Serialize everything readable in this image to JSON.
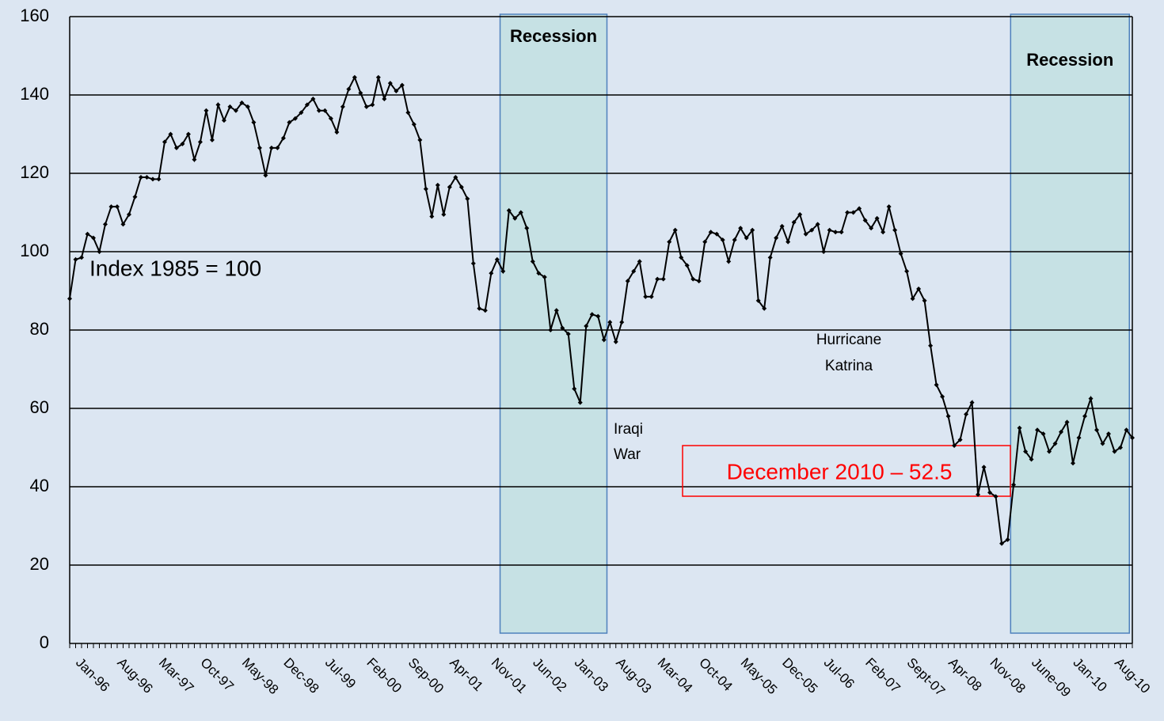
{
  "chart_data": {
    "type": "line",
    "categories": [
      "Jan-96",
      null,
      null,
      null,
      null,
      null,
      null,
      "Aug-96",
      null,
      null,
      null,
      null,
      null,
      null,
      "Mar-97",
      null,
      null,
      null,
      null,
      null,
      null,
      "Oct-97",
      null,
      null,
      null,
      null,
      null,
      null,
      "May-98",
      null,
      null,
      null,
      null,
      null,
      null,
      "Dec-98",
      null,
      null,
      null,
      null,
      null,
      null,
      "Jul-99",
      null,
      null,
      null,
      null,
      null,
      null,
      "Feb-00",
      null,
      null,
      null,
      null,
      null,
      null,
      "Sep-00",
      null,
      null,
      null,
      null,
      null,
      null,
      "Apr-01",
      null,
      null,
      null,
      null,
      null,
      null,
      "Nov-01",
      null,
      null,
      null,
      null,
      null,
      null,
      "Jun-02",
      null,
      null,
      null,
      null,
      null,
      null,
      "Jan-03",
      null,
      null,
      null,
      null,
      null,
      null,
      "Aug-03",
      null,
      null,
      null,
      null,
      null,
      null,
      "Mar-04",
      null,
      null,
      null,
      null,
      null,
      null,
      "Oct-04",
      null,
      null,
      null,
      null,
      null,
      null,
      "May-05",
      null,
      null,
      null,
      null,
      null,
      null,
      "Dec-05",
      null,
      null,
      null,
      null,
      null,
      null,
      "Jul-06",
      null,
      null,
      null,
      null,
      null,
      null,
      "Feb-07",
      null,
      null,
      null,
      null,
      null,
      null,
      "Sept-07",
      null,
      null,
      null,
      null,
      null,
      null,
      "Apr-08",
      null,
      null,
      null,
      null,
      null,
      null,
      "Nov-08",
      null,
      null,
      null,
      null,
      null,
      null,
      "June-09",
      null,
      null,
      null,
      null,
      null,
      null,
      "Jan-10",
      null,
      null,
      null,
      null,
      null,
      null,
      "Aug-10",
      null,
      null,
      null,
      null
    ],
    "series": [
      {
        "color": "#000000",
        "values": [
          88,
          98,
          98.5,
          104.5,
          103.5,
          100,
          107,
          111.5,
          111.5,
          107,
          109.5,
          114,
          119,
          119,
          118.5,
          118.5,
          128,
          130,
          126.5,
          127.5,
          130,
          123.5,
          128,
          136,
          128.5,
          137.5,
          133.5,
          137,
          136,
          138,
          137,
          133,
          126.5,
          119.5,
          126.5,
          126.5,
          129,
          133,
          134,
          135.5,
          137.5,
          139,
          136,
          136,
          134,
          130.5,
          137,
          141.5,
          144.5,
          140.5,
          137,
          137.5,
          144.5,
          139,
          143,
          141,
          142.5,
          135.5,
          132.5,
          128.5,
          116,
          109,
          117,
          109.5,
          116.5,
          119,
          116.5,
          113.5,
          97,
          85.5,
          85,
          94.5,
          98,
          95,
          110.5,
          108.5,
          110,
          106,
          97.5,
          94.5,
          93.5,
          80,
          85,
          80.5,
          79,
          65,
          61.5,
          81,
          84,
          83.5,
          77.5,
          82,
          77,
          82,
          92.5,
          95,
          97.5,
          88.5,
          88.5,
          93,
          93,
          102.5,
          105.5,
          98.5,
          96.5,
          93,
          92.5,
          102.5,
          105,
          104.5,
          103,
          97.5,
          103,
          106,
          103.5,
          105.5,
          87.5,
          85.5,
          98.5,
          103.5,
          106.5,
          102.5,
          107.5,
          109.5,
          104.5,
          105.5,
          107,
          100,
          105.5,
          105,
          105,
          110,
          110,
          111,
          108,
          106,
          108.5,
          105,
          111.5,
          105.5,
          99.5,
          95,
          88,
          90.5,
          87.5,
          76,
          66,
          63,
          58,
          50.5,
          52,
          58.5,
          61.5,
          38,
          45,
          38.5,
          37.5,
          25.5,
          26.5,
          40.5,
          55,
          49,
          47,
          54.5,
          53.5,
          49,
          51,
          54,
          56.5,
          46,
          52.5,
          58,
          62.5,
          54.5,
          51,
          53.5,
          49,
          50,
          54.5,
          52.5
        ]
      }
    ],
    "ylim": [
      0,
      160
    ],
    "yticks": [
      0,
      20,
      40,
      60,
      80,
      100,
      120,
      140,
      160
    ],
    "grid": true,
    "recessions": [
      {
        "label": "Recession",
        "from": 73,
        "to": 90
      },
      {
        "label": "Recession",
        "from": 159,
        "to": 178
      }
    ],
    "annotations": [
      {
        "text": "Index 1985 = 100"
      },
      {
        "lines": [
          "Iraqi",
          "War"
        ]
      },
      {
        "lines": [
          "Hurricane",
          "Katrina"
        ]
      },
      {
        "text": "December 2010 – 52.5",
        "color": "#ff0000"
      }
    ]
  }
}
